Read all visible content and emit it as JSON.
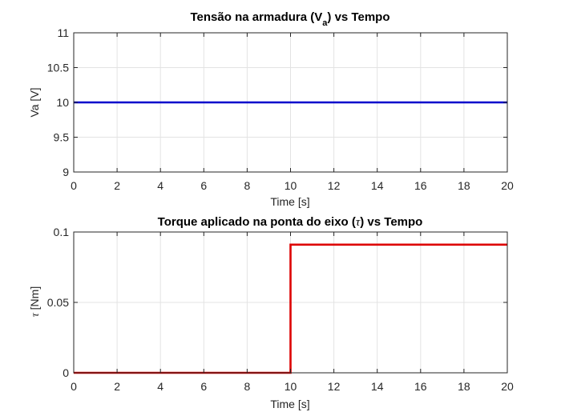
{
  "chart_data": [
    {
      "type": "line",
      "title_main": "Tensão na armadura (V",
      "title_sub": "a",
      "title_end": ") vs Tempo",
      "xlabel": "Time [s]",
      "ylabel": "Va [V]",
      "xlim": [
        0,
        20
      ],
      "ylim": [
        9,
        11
      ],
      "xticks": [
        0,
        2,
        4,
        6,
        8,
        10,
        12,
        14,
        16,
        18,
        20
      ],
      "yticks": [
        9,
        9.5,
        10,
        10.5,
        11
      ],
      "ytick_labels": [
        "9",
        "9.5",
        "10",
        "10.5",
        "11"
      ],
      "grid": true,
      "series": [
        {
          "color": "#0000cc",
          "x": [
            0,
            20
          ],
          "y": [
            10,
            10
          ]
        }
      ]
    },
    {
      "type": "line",
      "title_main": "Torque aplicado na ponta do eixo (",
      "title_sub": "",
      "title_symbol": "τ",
      "title_end": ") vs Tempo",
      "xlabel": "Time [s]",
      "ylabel_symbol": "τ",
      "ylabel": " [Nm]",
      "xlim": [
        0,
        20
      ],
      "ylim": [
        0,
        0.1
      ],
      "xticks": [
        0,
        2,
        4,
        6,
        8,
        10,
        12,
        14,
        16,
        18,
        20
      ],
      "yticks": [
        0,
        0.05,
        0.1
      ],
      "ytick_labels": [
        "0",
        "0.05",
        "0.1"
      ],
      "grid": true,
      "series": [
        {
          "color": "#dd0000",
          "x": [
            0,
            10,
            10,
            20
          ],
          "y": [
            0,
            0,
            0.091,
            0.091
          ]
        }
      ]
    }
  ]
}
